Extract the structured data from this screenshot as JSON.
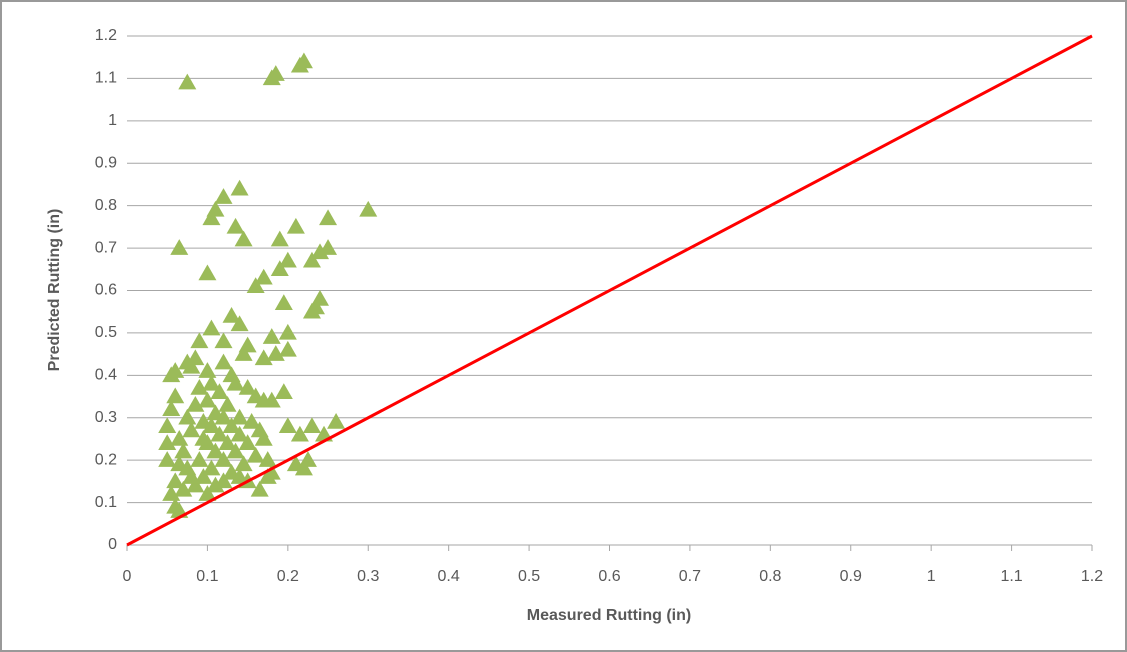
{
  "chart_data": {
    "type": "scatter",
    "xlabel": "Measured Rutting (in)",
    "ylabel": "Predicted Rutting (in)",
    "xlim": [
      0,
      1.2
    ],
    "ylim": [
      0,
      1.2
    ],
    "xticks": [
      0,
      0.1,
      0.2,
      0.3,
      0.4,
      0.5,
      0.6,
      0.7,
      0.8,
      0.9,
      1,
      1.1,
      1.2
    ],
    "yticks": [
      0,
      0.1,
      0.2,
      0.3,
      0.4,
      0.5,
      0.6,
      0.7,
      0.8,
      0.9,
      1,
      1.1,
      1.2
    ],
    "grid": "y",
    "series": [
      {
        "color": "#9bbb59",
        "marker": "triangle",
        "x": [
          0.075,
          0.18,
          0.185,
          0.215,
          0.22,
          0.14,
          0.12,
          0.11,
          0.105,
          0.3,
          0.25,
          0.065,
          0.135,
          0.145,
          0.19,
          0.21,
          0.1,
          0.2,
          0.23,
          0.24,
          0.25,
          0.19,
          0.17,
          0.16,
          0.195,
          0.24,
          0.235,
          0.23,
          0.13,
          0.14,
          0.105,
          0.09,
          0.2,
          0.18,
          0.12,
          0.15,
          0.145,
          0.17,
          0.185,
          0.2,
          0.055,
          0.06,
          0.075,
          0.085,
          0.08,
          0.1,
          0.13,
          0.135,
          0.16,
          0.17,
          0.18,
          0.195,
          0.15,
          0.26,
          0.23,
          0.215,
          0.245,
          0.2,
          0.225,
          0.21,
          0.22,
          0.175,
          0.18,
          0.165,
          0.175,
          0.065,
          0.06,
          0.055,
          0.06,
          0.07,
          0.085,
          0.095,
          0.1,
          0.11,
          0.12,
          0.14,
          0.15,
          0.05,
          0.05,
          0.05,
          0.055,
          0.06,
          0.065,
          0.07,
          0.075,
          0.08,
          0.085,
          0.09,
          0.09,
          0.095,
          0.1,
          0.1,
          0.105,
          0.105,
          0.11,
          0.11,
          0.115,
          0.115,
          0.12,
          0.12,
          0.125,
          0.125,
          0.13,
          0.13,
          0.135,
          0.14,
          0.14,
          0.145,
          0.15,
          0.155,
          0.16,
          0.165,
          0.17,
          0.075,
          0.08,
          0.065,
          0.095,
          0.105,
          0.12
        ],
        "y": [
          1.09,
          1.1,
          1.11,
          1.13,
          1.14,
          0.84,
          0.82,
          0.79,
          0.77,
          0.79,
          0.77,
          0.7,
          0.75,
          0.72,
          0.72,
          0.75,
          0.64,
          0.67,
          0.67,
          0.69,
          0.7,
          0.65,
          0.63,
          0.61,
          0.57,
          0.58,
          0.56,
          0.55,
          0.54,
          0.52,
          0.51,
          0.48,
          0.5,
          0.49,
          0.48,
          0.47,
          0.45,
          0.44,
          0.45,
          0.46,
          0.4,
          0.41,
          0.43,
          0.44,
          0.42,
          0.41,
          0.4,
          0.38,
          0.35,
          0.34,
          0.34,
          0.36,
          0.37,
          0.29,
          0.28,
          0.26,
          0.26,
          0.28,
          0.2,
          0.19,
          0.18,
          0.2,
          0.17,
          0.13,
          0.16,
          0.08,
          0.09,
          0.12,
          0.15,
          0.13,
          0.14,
          0.16,
          0.12,
          0.14,
          0.15,
          0.16,
          0.15,
          0.2,
          0.24,
          0.28,
          0.32,
          0.35,
          0.25,
          0.22,
          0.3,
          0.27,
          0.33,
          0.2,
          0.37,
          0.29,
          0.24,
          0.34,
          0.18,
          0.28,
          0.31,
          0.22,
          0.26,
          0.36,
          0.2,
          0.3,
          0.24,
          0.33,
          0.17,
          0.28,
          0.22,
          0.3,
          0.26,
          0.19,
          0.24,
          0.29,
          0.21,
          0.27,
          0.25,
          0.18,
          0.16,
          0.19,
          0.25,
          0.38,
          0.43
        ]
      },
      {
        "color": "#ff0000",
        "style": "line",
        "x": [
          0,
          1.2
        ],
        "y": [
          0,
          1.2
        ]
      }
    ]
  }
}
